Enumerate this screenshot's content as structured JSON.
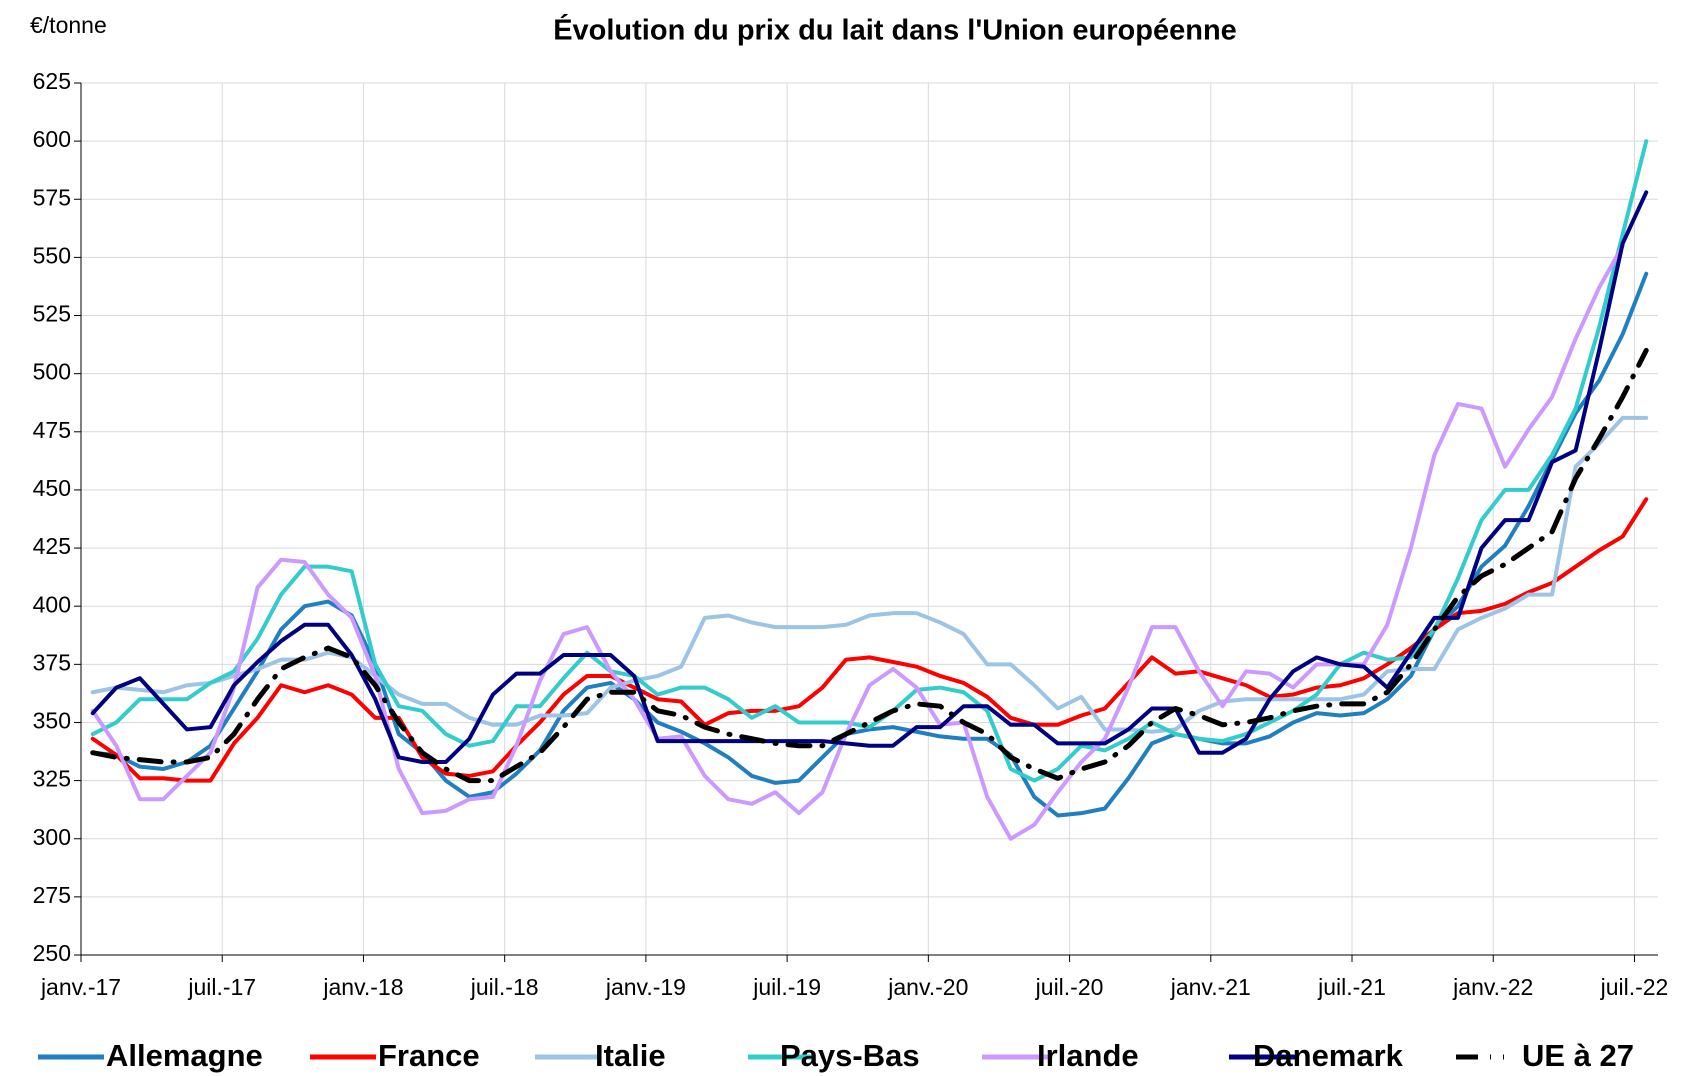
{
  "chart_data": {
    "type": "line",
    "title": "Évolution du prix du lait dans l'Union européenne",
    "y_label": "€/tonne",
    "categories": [
      "janv.-17",
      null,
      null,
      null,
      null,
      null,
      "juil.-17",
      null,
      null,
      null,
      null,
      null,
      "janv.-18",
      null,
      null,
      null,
      null,
      null,
      "juil.-18",
      null,
      null,
      null,
      null,
      null,
      "janv.-19",
      null,
      null,
      null,
      null,
      null,
      "juil.-19",
      null,
      null,
      null,
      null,
      null,
      "janv.-20",
      null,
      null,
      null,
      null,
      null,
      "juil.-20",
      null,
      null,
      null,
      null,
      null,
      "janv.-21",
      null,
      null,
      null,
      null,
      null,
      "juil.-21",
      null,
      null,
      null,
      null,
      null,
      "janv.-22",
      null,
      null,
      null,
      null,
      null,
      "juil.-22"
    ],
    "ylim": [
      250,
      625
    ],
    "yticks": [
      250,
      275,
      300,
      325,
      350,
      375,
      400,
      425,
      450,
      475,
      500,
      525,
      550,
      575,
      600,
      625
    ],
    "grid": true,
    "legend": "bottom",
    "series": [
      {
        "name": "Allemagne",
        "color": "#1f7fc0",
        "values": [
          337,
          336,
          331,
          330,
          333,
          340,
          356,
          372,
          390,
          400,
          402,
          396,
          375,
          345,
          337,
          325,
          318,
          320,
          328,
          338,
          355,
          365,
          367,
          360,
          350,
          346,
          341,
          335,
          327,
          324,
          325,
          335,
          345,
          347,
          348,
          346,
          344,
          343,
          343,
          336,
          318,
          310,
          311,
          313,
          326,
          341,
          345,
          343,
          341,
          341,
          344,
          350,
          354,
          353,
          354,
          360,
          370,
          390,
          400,
          417,
          426,
          443,
          463,
          483,
          497,
          517,
          543
        ]
      },
      {
        "name": "France",
        "color": "#ff0000",
        "values": [
          343,
          336,
          326,
          326,
          325,
          325,
          341,
          352,
          366,
          363,
          366,
          362,
          352,
          352,
          335,
          328,
          327,
          329,
          340,
          350,
          362,
          370,
          370,
          365,
          360,
          359,
          349,
          354,
          355,
          355,
          357,
          365,
          377,
          378,
          376,
          374,
          370,
          367,
          361,
          352,
          349,
          349,
          353,
          356,
          367,
          378,
          371,
          372,
          369,
          366,
          361,
          362,
          365,
          366,
          369,
          375,
          382,
          390,
          397,
          398,
          401,
          406,
          410,
          417,
          424,
          430,
          446
        ]
      },
      {
        "name": "Italie",
        "color": "#9dc3e6",
        "values": [
          363,
          365,
          364,
          363,
          366,
          367,
          370,
          373,
          377,
          377,
          380,
          378,
          370,
          362,
          358,
          358,
          352,
          349,
          349,
          353,
          353,
          354,
          365,
          368,
          370,
          374,
          395,
          396,
          393,
          391,
          391,
          391,
          392,
          396,
          397,
          397,
          393,
          388,
          375,
          375,
          366,
          356,
          361,
          347,
          347,
          346,
          347,
          355,
          359,
          360,
          360,
          360,
          360,
          360,
          362,
          372,
          373,
          373,
          390,
          395,
          399,
          405,
          405,
          460,
          470,
          481,
          481
        ]
      },
      {
        "name": "Pays-Bas",
        "color": "#33cccc",
        "values": [
          345,
          350,
          360,
          360,
          360,
          367,
          372,
          386,
          405,
          417,
          417,
          415,
          375,
          357,
          355,
          345,
          340,
          342,
          357,
          357,
          369,
          380,
          372,
          370,
          362,
          365,
          365,
          360,
          352,
          357,
          350,
          350,
          350,
          348,
          355,
          364,
          365,
          363,
          355,
          330,
          325,
          330,
          340,
          338,
          343,
          350,
          345,
          343,
          342,
          345,
          350,
          355,
          362,
          375,
          380,
          377,
          378,
          390,
          412,
          437,
          450,
          450,
          465,
          485,
          520,
          560,
          600
        ]
      },
      {
        "name": "Irlande",
        "color": "#cc99ff",
        "values": [
          355,
          340,
          317,
          317,
          327,
          337,
          365,
          408,
          420,
          419,
          405,
          395,
          370,
          330,
          311,
          312,
          317,
          318,
          340,
          368,
          388,
          391,
          372,
          360,
          343,
          344,
          327,
          317,
          315,
          320,
          311,
          320,
          345,
          366,
          373,
          365,
          349,
          350,
          318,
          300,
          306,
          320,
          333,
          343,
          365,
          391,
          391,
          372,
          357,
          372,
          371,
          365,
          375,
          375,
          375,
          392,
          425,
          465,
          487,
          485,
          460,
          476,
          490,
          515,
          537,
          555,
          null
        ]
      },
      {
        "name": "Danemark",
        "color": "#000080",
        "values": [
          354,
          365,
          369,
          358,
          347,
          348,
          366,
          376,
          385,
          392,
          392,
          379,
          360,
          335,
          333,
          333,
          343,
          362,
          371,
          371,
          379,
          379,
          379,
          370,
          342,
          342,
          342,
          342,
          342,
          342,
          342,
          342,
          341,
          340,
          340,
          348,
          348,
          357,
          357,
          349,
          349,
          341,
          341,
          341,
          347,
          356,
          356,
          337,
          337,
          343,
          360,
          372,
          378,
          375,
          374,
          365,
          380,
          395,
          395,
          425,
          437,
          437,
          462,
          467,
          510,
          556,
          578
        ]
      },
      {
        "name": "UE à 27",
        "color": "#000000",
        "dashed": true,
        "values": [
          337,
          335,
          334,
          333,
          333,
          335,
          345,
          360,
          373,
          378,
          382,
          378,
          366,
          350,
          337,
          330,
          325,
          325,
          331,
          337,
          348,
          360,
          363,
          363,
          355,
          353,
          348,
          345,
          343,
          341,
          340,
          340,
          345,
          350,
          355,
          358,
          357,
          350,
          345,
          335,
          330,
          326,
          330,
          333,
          340,
          350,
          356,
          353,
          349,
          350,
          352,
          355,
          357,
          358,
          358,
          363,
          375,
          390,
          404,
          413,
          418,
          425,
          432,
          455,
          472,
          490,
          510
        ]
      }
    ]
  }
}
